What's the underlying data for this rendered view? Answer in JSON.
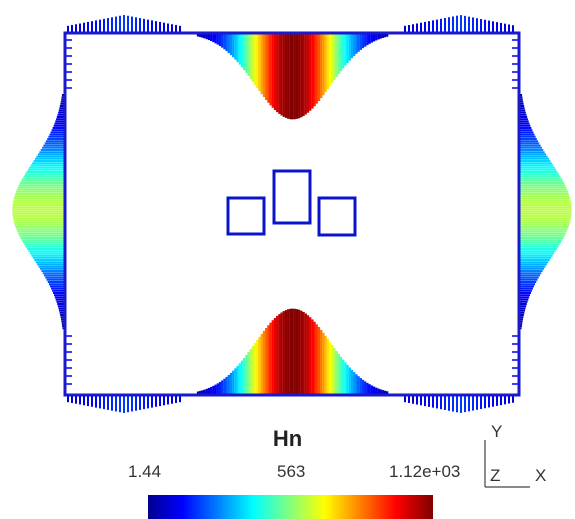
{
  "legend": {
    "title": "Hn",
    "min_label": "1.44",
    "mid_label": "563",
    "max_label": "1.12e+03",
    "min": 1.44,
    "max": 1120,
    "colormap": [
      "#00008f",
      "#0000ff",
      "#00ffff",
      "#ffff00",
      "#ff0000",
      "#800000"
    ]
  },
  "axes_triad": {
    "y": "Y",
    "z": "Z",
    "x": "X"
  },
  "colors": {
    "outline": "#0a14cc",
    "frame": "#1a1acc"
  },
  "field": {
    "top_peak": 1120,
    "bottom_peak": 1120,
    "side_peak": 620,
    "corner_peak": 200
  }
}
